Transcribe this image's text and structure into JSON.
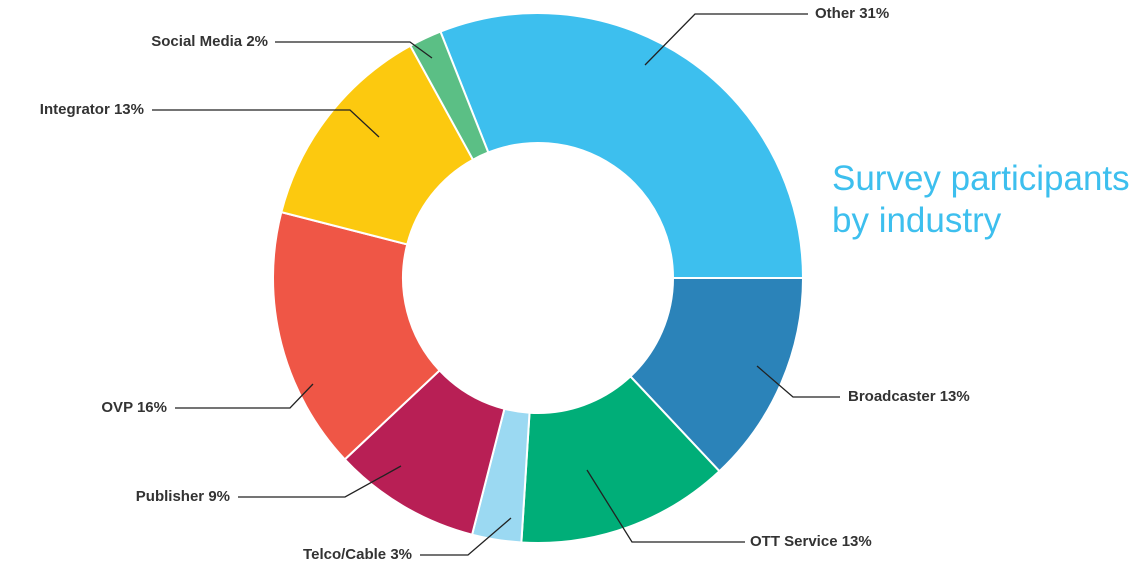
{
  "chart_data": {
    "type": "donut",
    "title": "Survey participants by industry",
    "categories": [
      "Other",
      "Broadcaster",
      "OTT Service",
      "Telco/Cable",
      "Publisher",
      "OVP",
      "Integrator",
      "Social Media"
    ],
    "values": [
      31,
      13,
      13,
      3,
      9,
      16,
      13,
      2
    ],
    "value_labels": [
      "31%",
      "13%",
      "13%",
      "3%",
      "9%",
      "16%",
      "13%",
      "2%"
    ],
    "colors": [
      "#3dbfee",
      "#2b83b9",
      "#00ae78",
      "#9bd9f2",
      "#b81f55",
      "#ef5646",
      "#fcc90f",
      "#5bbf85"
    ]
  }
}
